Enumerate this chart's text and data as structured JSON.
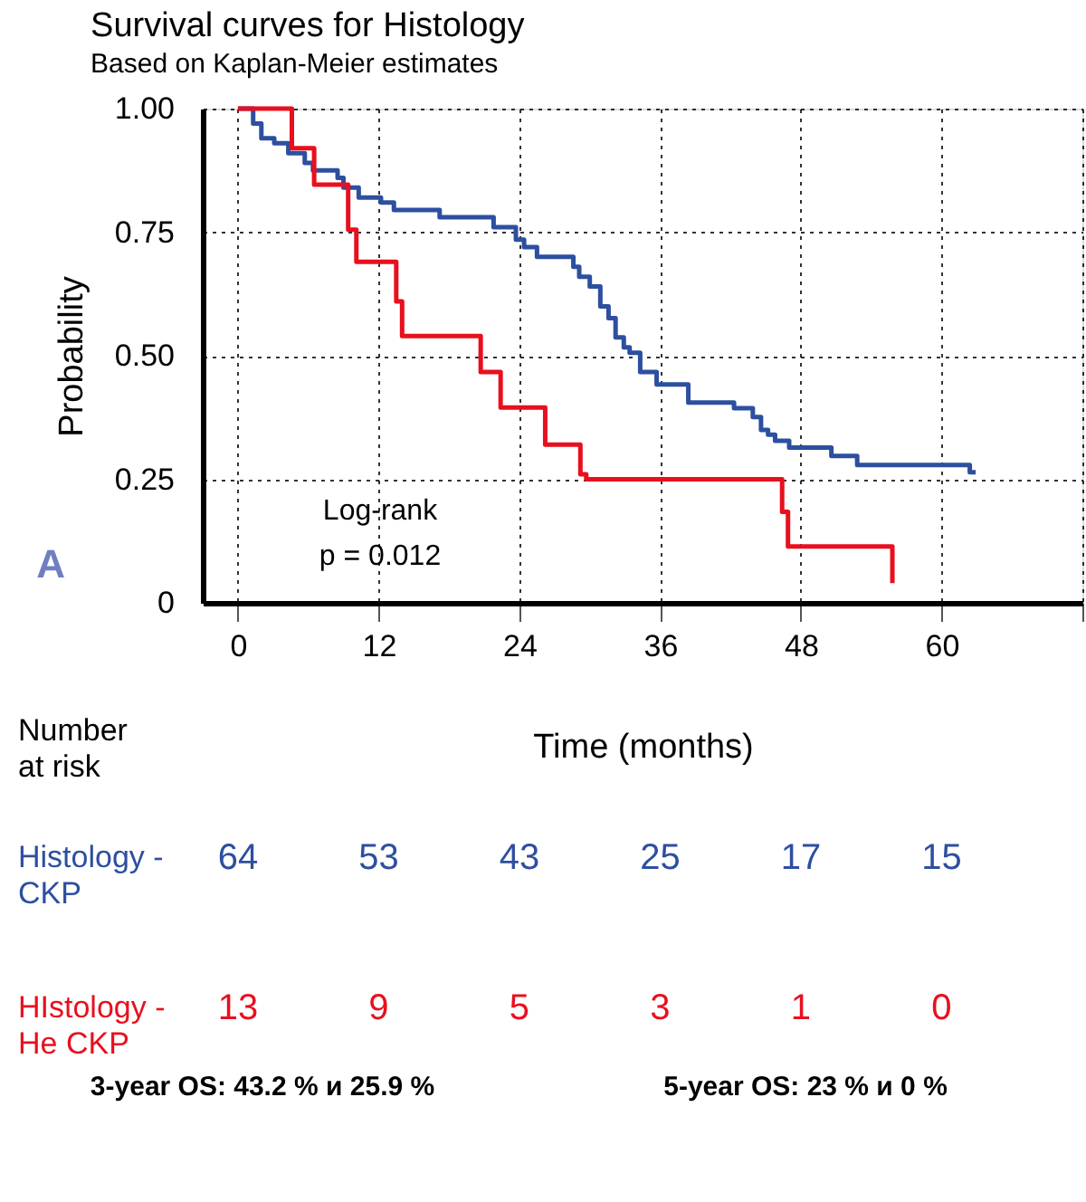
{
  "chart_data": [
    {
      "type": "step",
      "title": "Survival curves for Histology",
      "subtitle": "Based on Kaplan-Meier estimates",
      "xlabel": "Time (months)",
      "ylabel": "Probability",
      "xlim": [
        -3,
        72
      ],
      "xticks": [
        0,
        12,
        24,
        36,
        48,
        60,
        {
          "value": 72,
          "label": null
        }
      ],
      "ylim": [
        0,
        1
      ],
      "yticks": [
        {
          "value": 1,
          "label": "1.00"
        },
        {
          "value": 0.75,
          "label": "0.75"
        },
        {
          "value": 0.5,
          "label": "0.50"
        },
        {
          "value": 0.25,
          "label": "0.25"
        },
        0
      ],
      "grid": true,
      "series": [
        {
          "color": "#2d4fa0",
          "x": [
            0,
            1.3,
            2,
            3.1,
            4.3,
            5.7,
            6.4,
            8.5,
            9,
            10.3,
            12.2,
            13.3,
            17.2,
            21.8,
            23.7,
            24.4,
            25.5,
            28.6,
            29.1,
            30,
            30.9,
            31.6,
            32.2,
            32.9,
            33.4,
            34.3,
            35.7,
            38.4,
            42.3,
            43.9,
            44.6,
            45.2,
            45.8,
            47,
            50.6,
            52.8,
            62.4,
            62.9
          ],
          "values": [
            1.0,
            0.97,
            0.94,
            0.93,
            0.91,
            0.89,
            0.875,
            0.86,
            0.84,
            0.82,
            0.81,
            0.795,
            0.78,
            0.76,
            0.735,
            0.72,
            0.7,
            0.68,
            0.66,
            0.64,
            0.6,
            0.576,
            0.537,
            0.517,
            0.506,
            0.467,
            0.442,
            0.405,
            0.394,
            0.376,
            0.35,
            0.34,
            0.328,
            0.314,
            0.297,
            0.279,
            0.264,
            0.264
          ]
        },
        {
          "color": "#e8101e",
          "x": [
            0,
            4.6,
            6.5,
            9.4,
            10.1,
            13.5,
            14,
            20.7,
            22.4,
            26.2,
            29.2,
            29.7,
            46.4,
            46.9,
            55.8
          ],
          "values": [
            1.0,
            0.92,
            0.846,
            0.755,
            0.69,
            0.61,
            0.54,
            0.467,
            0.395,
            0.32,
            0.26,
            0.25,
            0.184,
            0.114,
            0.04
          ]
        }
      ],
      "annotations": [
        "A",
        "Log-rank",
        "p = 0.012"
      ]
    },
    {
      "type": "other",
      "title": "Number at risk",
      "colors": [
        "#2d4fa0",
        "#e8101e"
      ],
      "annotations": [
        "Histology - CKP",
        "64",
        "53",
        "43",
        "25",
        "17",
        "15",
        "HIstology - He CKP",
        "13",
        "9",
        "5",
        "3",
        "1",
        "0",
        "3-year OS: 43.2 % и 25.9 %",
        "5-year OS: 23 % и 0 %"
      ]
    }
  ]
}
